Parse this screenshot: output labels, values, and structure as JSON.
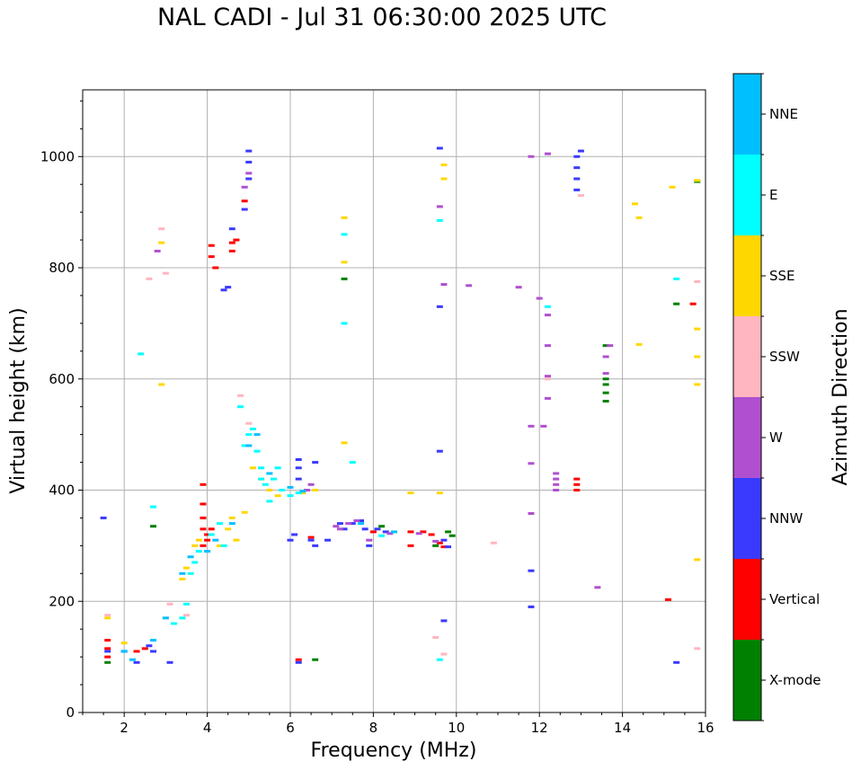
{
  "chart_data": {
    "type": "scatter",
    "title": "NAL CADI - Jul 31 06:30:00 2025 UTC",
    "xlabel": "Frequency (MHz)",
    "ylabel": "Virtual height (km)",
    "xlim": [
      1,
      16
    ],
    "ylim": [
      0,
      1120
    ],
    "xticks": [
      2,
      4,
      6,
      8,
      10,
      12,
      14,
      16
    ],
    "yticks": [
      0,
      200,
      400,
      600,
      800,
      1000
    ],
    "grid": true,
    "colorbar": {
      "label": "Azimuth Direction",
      "categories": [
        {
          "name": "X-mode",
          "color": "#008000"
        },
        {
          "name": "Vertical",
          "color": "#ff0000"
        },
        {
          "name": "NNW",
          "color": "#3a3aff"
        },
        {
          "name": "W",
          "color": "#b050d0"
        },
        {
          "name": "SSW",
          "color": "#ffb6c1"
        },
        {
          "name": "SSE",
          "color": "#ffd700"
        },
        {
          "name": "E",
          "color": "#00ffff"
        },
        {
          "name": "NNE",
          "color": "#00bfff"
        }
      ]
    },
    "series": [
      {
        "name": "X-mode",
        "points": [
          [
            1.6,
            90
          ],
          [
            2.7,
            335
          ],
          [
            6.6,
            95
          ],
          [
            7.3,
            780
          ],
          [
            8.2,
            335
          ],
          [
            9.5,
            300
          ],
          [
            9.8,
            325
          ],
          [
            9.9,
            318
          ],
          [
            13.6,
            560
          ],
          [
            13.6,
            575
          ],
          [
            13.6,
            590
          ],
          [
            13.6,
            600
          ],
          [
            13.6,
            660
          ],
          [
            15.3,
            735
          ],
          [
            15.8,
            955
          ]
        ]
      },
      {
        "name": "Vertical",
        "points": [
          [
            1.6,
            100
          ],
          [
            1.6,
            115
          ],
          [
            1.6,
            130
          ],
          [
            2.3,
            110
          ],
          [
            2.5,
            115
          ],
          [
            3.9,
            300
          ],
          [
            3.9,
            330
          ],
          [
            3.9,
            350
          ],
          [
            3.9,
            375
          ],
          [
            3.9,
            410
          ],
          [
            4.0,
            310
          ],
          [
            4.0,
            320
          ],
          [
            4.1,
            330
          ],
          [
            4.1,
            840
          ],
          [
            4.1,
            820
          ],
          [
            4.2,
            800
          ],
          [
            4.6,
            830
          ],
          [
            4.6,
            845
          ],
          [
            4.7,
            850
          ],
          [
            4.9,
            920
          ],
          [
            6.2,
            95
          ],
          [
            6.5,
            315
          ],
          [
            8.0,
            325
          ],
          [
            8.9,
            325
          ],
          [
            8.9,
            300
          ],
          [
            9.2,
            325
          ],
          [
            9.4,
            320
          ],
          [
            9.6,
            305
          ],
          [
            9.7,
            298
          ],
          [
            12.9,
            400
          ],
          [
            12.9,
            410
          ],
          [
            12.9,
            420
          ],
          [
            15.1,
            203
          ],
          [
            15.7,
            735
          ]
        ]
      },
      {
        "name": "NNW",
        "points": [
          [
            1.5,
            350
          ],
          [
            1.6,
            110
          ],
          [
            2.0,
            110
          ],
          [
            2.3,
            90
          ],
          [
            2.6,
            120
          ],
          [
            2.7,
            110
          ],
          [
            3.1,
            90
          ],
          [
            4.4,
            760
          ],
          [
            4.5,
            765
          ],
          [
            4.6,
            870
          ],
          [
            4.9,
            905
          ],
          [
            5.0,
            960
          ],
          [
            5.0,
            990
          ],
          [
            5.0,
            1010
          ],
          [
            6.0,
            310
          ],
          [
            6.1,
            320
          ],
          [
            6.2,
            420
          ],
          [
            6.2,
            440
          ],
          [
            6.2,
            455
          ],
          [
            6.2,
            90
          ],
          [
            6.5,
            310
          ],
          [
            6.6,
            300
          ],
          [
            6.6,
            450
          ],
          [
            6.9,
            310
          ],
          [
            7.2,
            340
          ],
          [
            7.3,
            330
          ],
          [
            7.5,
            340
          ],
          [
            7.7,
            345
          ],
          [
            7.8,
            330
          ],
          [
            7.9,
            300
          ],
          [
            8.1,
            330
          ],
          [
            8.3,
            325
          ],
          [
            9.6,
            470
          ],
          [
            9.6,
            730
          ],
          [
            9.6,
            1015
          ],
          [
            9.7,
            165
          ],
          [
            9.7,
            310
          ],
          [
            9.8,
            298
          ],
          [
            11.8,
            190
          ],
          [
            11.8,
            255
          ],
          [
            12.9,
            940
          ],
          [
            12.9,
            960
          ],
          [
            12.9,
            980
          ],
          [
            12.9,
            1000
          ],
          [
            13.0,
            1010
          ],
          [
            15.3,
            90
          ]
        ]
      },
      {
        "name": "W",
        "points": [
          [
            2.8,
            830
          ],
          [
            4.9,
            945
          ],
          [
            5.0,
            970
          ],
          [
            6.4,
            400
          ],
          [
            6.5,
            410
          ],
          [
            7.1,
            335
          ],
          [
            7.2,
            330
          ],
          [
            7.4,
            340
          ],
          [
            7.6,
            345
          ],
          [
            7.9,
            310
          ],
          [
            8.4,
            322
          ],
          [
            9.1,
            322
          ],
          [
            9.5,
            308
          ],
          [
            9.6,
            910
          ],
          [
            9.7,
            770
          ],
          [
            10.3,
            768
          ],
          [
            11.5,
            765
          ],
          [
            11.8,
            358
          ],
          [
            11.8,
            448
          ],
          [
            11.8,
            515
          ],
          [
            11.8,
            1000
          ],
          [
            12.0,
            745
          ],
          [
            12.1,
            515
          ],
          [
            12.2,
            565
          ],
          [
            12.2,
            605
          ],
          [
            12.2,
            660
          ],
          [
            12.2,
            715
          ],
          [
            12.2,
            1005
          ],
          [
            12.4,
            400
          ],
          [
            12.4,
            410
          ],
          [
            12.4,
            420
          ],
          [
            12.4,
            430
          ],
          [
            13.4,
            225
          ],
          [
            13.6,
            610
          ],
          [
            13.6,
            640
          ],
          [
            13.7,
            660
          ]
        ]
      },
      {
        "name": "SSW",
        "points": [
          [
            1.6,
            175
          ],
          [
            2.6,
            780
          ],
          [
            2.9,
            870
          ],
          [
            3.0,
            790
          ],
          [
            3.1,
            195
          ],
          [
            3.5,
            175
          ],
          [
            4.8,
            570
          ],
          [
            5.0,
            520
          ],
          [
            9.5,
            135
          ],
          [
            9.7,
            105
          ],
          [
            10.9,
            305
          ],
          [
            12.2,
            600
          ],
          [
            13.0,
            930
          ],
          [
            15.8,
            115
          ],
          [
            15.8,
            775
          ]
        ]
      },
      {
        "name": "SSE",
        "points": [
          [
            1.6,
            170
          ],
          [
            2.0,
            125
          ],
          [
            2.9,
            590
          ],
          [
            2.9,
            845
          ],
          [
            3.4,
            240
          ],
          [
            3.5,
            260
          ],
          [
            3.7,
            300
          ],
          [
            3.8,
            310
          ],
          [
            4.3,
            300
          ],
          [
            4.5,
            330
          ],
          [
            4.6,
            350
          ],
          [
            4.7,
            310
          ],
          [
            4.9,
            360
          ],
          [
            5.1,
            440
          ],
          [
            5.3,
            420
          ],
          [
            5.5,
            400
          ],
          [
            5.7,
            390
          ],
          [
            6.3,
            395
          ],
          [
            6.6,
            400
          ],
          [
            7.3,
            485
          ],
          [
            7.3,
            810
          ],
          [
            7.3,
            890
          ],
          [
            8.9,
            395
          ],
          [
            9.6,
            395
          ],
          [
            9.7,
            985
          ],
          [
            9.7,
            960
          ],
          [
            14.3,
            915
          ],
          [
            14.4,
            890
          ],
          [
            14.4,
            662
          ],
          [
            15.2,
            945
          ],
          [
            15.8,
            275
          ],
          [
            15.8,
            590
          ],
          [
            15.8,
            640
          ],
          [
            15.8,
            690
          ],
          [
            15.8,
            957
          ]
        ]
      },
      {
        "name": "E",
        "points": [
          [
            2.4,
            645
          ],
          [
            2.7,
            370
          ],
          [
            3.2,
            160
          ],
          [
            3.4,
            170
          ],
          [
            3.5,
            195
          ],
          [
            3.6,
            250
          ],
          [
            3.7,
            270
          ],
          [
            3.8,
            290
          ],
          [
            4.1,
            320
          ],
          [
            4.3,
            340
          ],
          [
            4.4,
            300
          ],
          [
            4.8,
            550
          ],
          [
            4.9,
            480
          ],
          [
            5.0,
            500
          ],
          [
            5.1,
            510
          ],
          [
            5.2,
            470
          ],
          [
            5.3,
            420
          ],
          [
            5.3,
            440
          ],
          [
            5.4,
            410
          ],
          [
            5.5,
            380
          ],
          [
            5.6,
            420
          ],
          [
            5.7,
            440
          ],
          [
            5.8,
            400
          ],
          [
            6.0,
            390
          ],
          [
            6.2,
            395
          ],
          [
            7.3,
            700
          ],
          [
            7.3,
            860
          ],
          [
            7.5,
            450
          ],
          [
            8.2,
            318
          ],
          [
            9.6,
            885
          ],
          [
            9.6,
            95
          ],
          [
            12.2,
            730
          ],
          [
            15.3,
            780
          ]
        ]
      },
      {
        "name": "NNE",
        "points": [
          [
            2.0,
            110
          ],
          [
            2.2,
            95
          ],
          [
            2.7,
            130
          ],
          [
            3.0,
            170
          ],
          [
            3.4,
            250
          ],
          [
            3.6,
            280
          ],
          [
            4.0,
            290
          ],
          [
            4.2,
            310
          ],
          [
            4.6,
            340
          ],
          [
            5.0,
            480
          ],
          [
            5.2,
            500
          ],
          [
            5.5,
            430
          ],
          [
            6.0,
            405
          ],
          [
            6.3,
            398
          ],
          [
            7.7,
            340
          ],
          [
            8.5,
            325
          ]
        ]
      }
    ]
  }
}
